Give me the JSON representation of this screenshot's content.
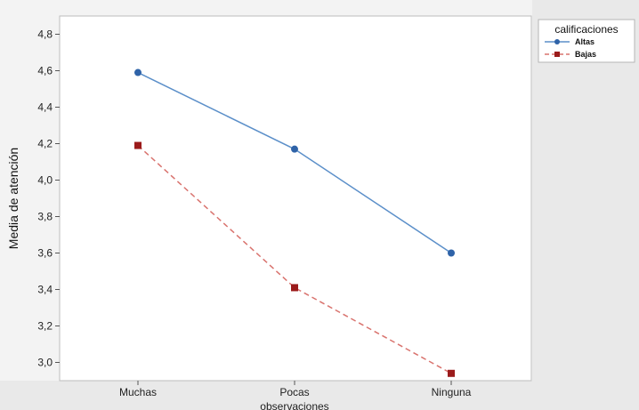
{
  "chart_data": {
    "type": "line",
    "title": "",
    "xlabel": "observaciones",
    "ylabel": "Media de atención",
    "categories": [
      "Muchas",
      "Pocas",
      "Ninguna"
    ],
    "ylim": [
      2.9,
      4.9
    ],
    "yticks": [
      "4,8",
      "4,6",
      "4,4",
      "4,2",
      "4,0",
      "3,8",
      "3,6",
      "3,4",
      "3,2",
      "3,0"
    ],
    "ytick_values": [
      4.8,
      4.6,
      4.4,
      4.2,
      4.0,
      3.8,
      3.6,
      3.4,
      3.2,
      3.0
    ],
    "grid": false,
    "legend": {
      "title": "calificaciones",
      "position": "top-right"
    },
    "series": [
      {
        "name": "Altas",
        "values": [
          4.59,
          4.17,
          3.6
        ],
        "color": "#5b8fc9",
        "marker": "circle",
        "marker_color": "#2f63a8",
        "line_style": "solid"
      },
      {
        "name": "Bajas",
        "values": [
          4.19,
          3.41,
          2.94
        ],
        "color": "#d9736e",
        "marker": "square",
        "marker_color": "#9b1b1b",
        "line_style": "dashed"
      }
    ]
  }
}
